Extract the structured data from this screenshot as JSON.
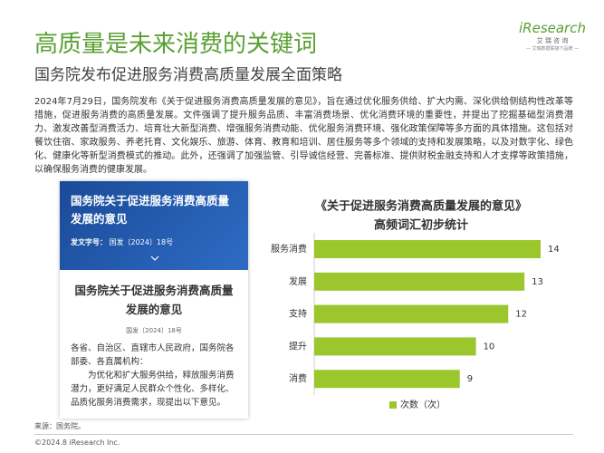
{
  "header": {
    "title": "高质量是未来消费的关键词",
    "subtitle": "国务院发布促进服务消费高质量发展全面策略",
    "logo": "iResearch",
    "logo_cn": "艾 瑞 咨 询",
    "logo_tagline": "— 艾瑞数据联接下品牌 —"
  },
  "body": "2024年7月29日，国务院发布《关于促进服务消费高质量发展的意见》，旨在通过优化服务供给、扩大内需、深化供给侧结构性改革等措施，促进服务消费的高质量发展。文件强调了提升服务品质、丰富消费场景、优化消费环境的重要性，并提出了挖掘基础型消费潜力、激发改善型消费活力、培育壮大新型消费、增强服务消费动能、优化服务消费环境、强化政策保障等多方面的具体措施。这包括对餐饮住宿、家政服务、养老托育、文化娱乐、旅游、体育、教育和培训、居住服务等多个领域的支持和发展策略，以及对数字化、绿色化、健康化等新型消费模式的推动。此外，还强调了加强监管、引导诚信经营、完善标准、提供财税金融支持和人才支撑等政策措施，以确保服务消费的健康发展。",
  "document_card": {
    "banner_title": "国务院关于促进服务消费高质量发展的意见",
    "doc_no_label": "发文字号：",
    "doc_no": "国发〔2024〕18号",
    "title": "国务院关于促进服务消费高质量发展的意见",
    "doc_no_small": "国发〔2024〕18号",
    "greeting": "各省、自治区、直辖市人民政府，国务院各部委、各直属机构：",
    "text": "为优化和扩大服务供给，释放服务消费潜力，更好满足人民群众个性化、多样化、品质化服务消费需求，现提出以下意见。"
  },
  "chart_data": {
    "type": "bar",
    "orientation": "horizontal",
    "title": "《关于促进服务消费高质量发展的意见》",
    "subtitle": "高频词汇初步统计",
    "categories": [
      "服务消费",
      "发展",
      "支持",
      "提升",
      "消费"
    ],
    "series": [
      {
        "name": "次数（次）",
        "color": "#9bc62c",
        "values": [
          14,
          13,
          12,
          10,
          9
        ]
      }
    ],
    "legend": "bottom"
  },
  "footer": {
    "source": "来源：国务院。",
    "copyright": "©2024.8 iResearch Inc."
  }
}
